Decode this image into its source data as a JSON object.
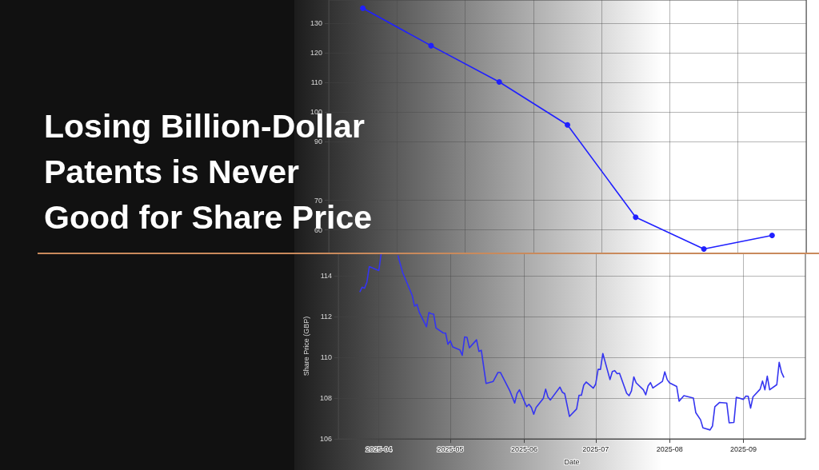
{
  "chart_data": [
    {
      "type": "line",
      "title": "Losing Billion-Dollar Patents is Never Good for Share Price",
      "categories": [
        null,
        null,
        null,
        null,
        null,
        null,
        null
      ],
      "series": [
        {
          "color": "#2020ff",
          "values": [
            135.2,
            122.5,
            110.2,
            95.6,
            64.3,
            53.5,
            58.1
          ]
        }
      ],
      "ylim": [
        52,
        138
      ],
      "yticks": [
        60,
        70,
        90,
        100,
        110,
        120,
        130
      ],
      "tick_labels": "y",
      "grid": true,
      "marker": "circle",
      "line_style": "solid"
    },
    {
      "type": "line",
      "xlabel": "Date",
      "ylabel": "Share Price (GBP)",
      "x": [
        "2025-03-24",
        "2025-03-25",
        "2025-03-26",
        "2025-03-27",
        "2025-03-28",
        "2025-04-01",
        "2025-04-02",
        "2025-04-03",
        "2025-04-08",
        "2025-04-09",
        "2025-04-11",
        "2025-04-15",
        "2025-04-16",
        "2025-04-17",
        "2025-04-18",
        "2025-04-21",
        "2025-04-22",
        "2025-04-23",
        "2025-04-24",
        "2025-04-25",
        "2025-04-28",
        "2025-04-29",
        "2025-04-30",
        "2025-05-01",
        "2025-05-02",
        "2025-05-05",
        "2025-05-06",
        "2025-05-07",
        "2025-05-08",
        "2025-05-09",
        "2025-05-12",
        "2025-05-13",
        "2025-05-14",
        "2025-05-16",
        "2025-05-19",
        "2025-05-21",
        "2025-05-22",
        "2025-05-23",
        "2025-05-26",
        "2025-05-28",
        "2025-05-29",
        "2025-05-30",
        "2025-06-02",
        "2025-06-03",
        "2025-06-04",
        "2025-06-05",
        "2025-06-06",
        "2025-06-09",
        "2025-06-10",
        "2025-06-11",
        "2025-06-12",
        "2025-06-16",
        "2025-06-17",
        "2025-06-18",
        "2025-06-20",
        "2025-06-23",
        "2025-06-24",
        "2025-06-25",
        "2025-06-26",
        "2025-06-27",
        "2025-06-30",
        "2025-07-01",
        "2025-07-02",
        "2025-07-03",
        "2025-07-04",
        "2025-07-07",
        "2025-07-08",
        "2025-07-09",
        "2025-07-10",
        "2025-07-11",
        "2025-07-14",
        "2025-07-15",
        "2025-07-16",
        "2025-07-17",
        "2025-07-18",
        "2025-07-21",
        "2025-07-22",
        "2025-07-23",
        "2025-07-24",
        "2025-07-25",
        "2025-07-29",
        "2025-07-30",
        "2025-07-31",
        "2025-08-01",
        "2025-08-04",
        "2025-08-05",
        "2025-08-07",
        "2025-08-11",
        "2025-08-12",
        "2025-08-14",
        "2025-08-15",
        "2025-08-18",
        "2025-08-19",
        "2025-08-20",
        "2025-08-22",
        "2025-08-25",
        "2025-08-26",
        "2025-08-28",
        "2025-08-29",
        "2025-09-01",
        "2025-09-02",
        "2025-09-03",
        "2025-09-04",
        "2025-09-05",
        "2025-09-08",
        "2025-09-09",
        "2025-09-10",
        "2025-09-11",
        "2025-09-12",
        "2025-09-15",
        "2025-09-16",
        "2025-09-17",
        "2025-09-18"
      ],
      "series": [
        {
          "color": "#3535f0",
          "values": [
            113.2,
            113.44,
            113.39,
            113.69,
            114.45,
            114.26,
            115.1,
            null,
            null,
            115.0,
            114.16,
            113.04,
            112.51,
            112.6,
            112.2,
            111.5,
            112.2,
            112.14,
            112.12,
            111.44,
            111.2,
            111.19,
            110.64,
            110.81,
            110.51,
            110.37,
            110.1,
            111.0,
            110.98,
            110.47,
            110.86,
            110.29,
            110.35,
            108.72,
            108.82,
            109.26,
            109.26,
            109.04,
            108.35,
            107.76,
            108.23,
            108.41,
            107.58,
            107.7,
            107.54,
            107.21,
            107.54,
            107.98,
            108.44,
            108.04,
            107.91,
            108.54,
            108.29,
            108.22,
            107.1,
            107.47,
            108.14,
            108.14,
            108.64,
            108.79,
            108.49,
            108.69,
            109.41,
            109.41,
            110.19,
            108.91,
            109.31,
            109.35,
            109.2,
            109.22,
            108.24,
            108.12,
            108.35,
            109.04,
            108.75,
            108.41,
            108.16,
            108.6,
            108.76,
            108.5,
            108.82,
            109.29,
            108.91,
            108.75,
            108.57,
            107.85,
            108.12,
            108.0,
            107.29,
            106.94,
            106.54,
            106.44,
            106.63,
            107.58,
            107.79,
            107.76,
            106.79,
            106.81,
            108.04,
            107.94,
            108.1,
            108.09,
            107.51,
            108.06,
            108.44,
            108.84,
            108.41,
            109.08,
            108.41,
            108.66,
            109.76,
            109.26,
            109.01
          ]
        }
      ],
      "xlim": [
        "2025-03-15",
        "2025-09-27"
      ],
      "ylim": [
        106,
        115.1
      ],
      "xticks": [
        "2025-04",
        "2025-05",
        "2025-06",
        "2025-07",
        "2025-08",
        "2025-09"
      ],
      "yticks": [
        106,
        108,
        110,
        112,
        114
      ],
      "grid": true,
      "marker": "none",
      "line_style": "solid"
    }
  ]
}
